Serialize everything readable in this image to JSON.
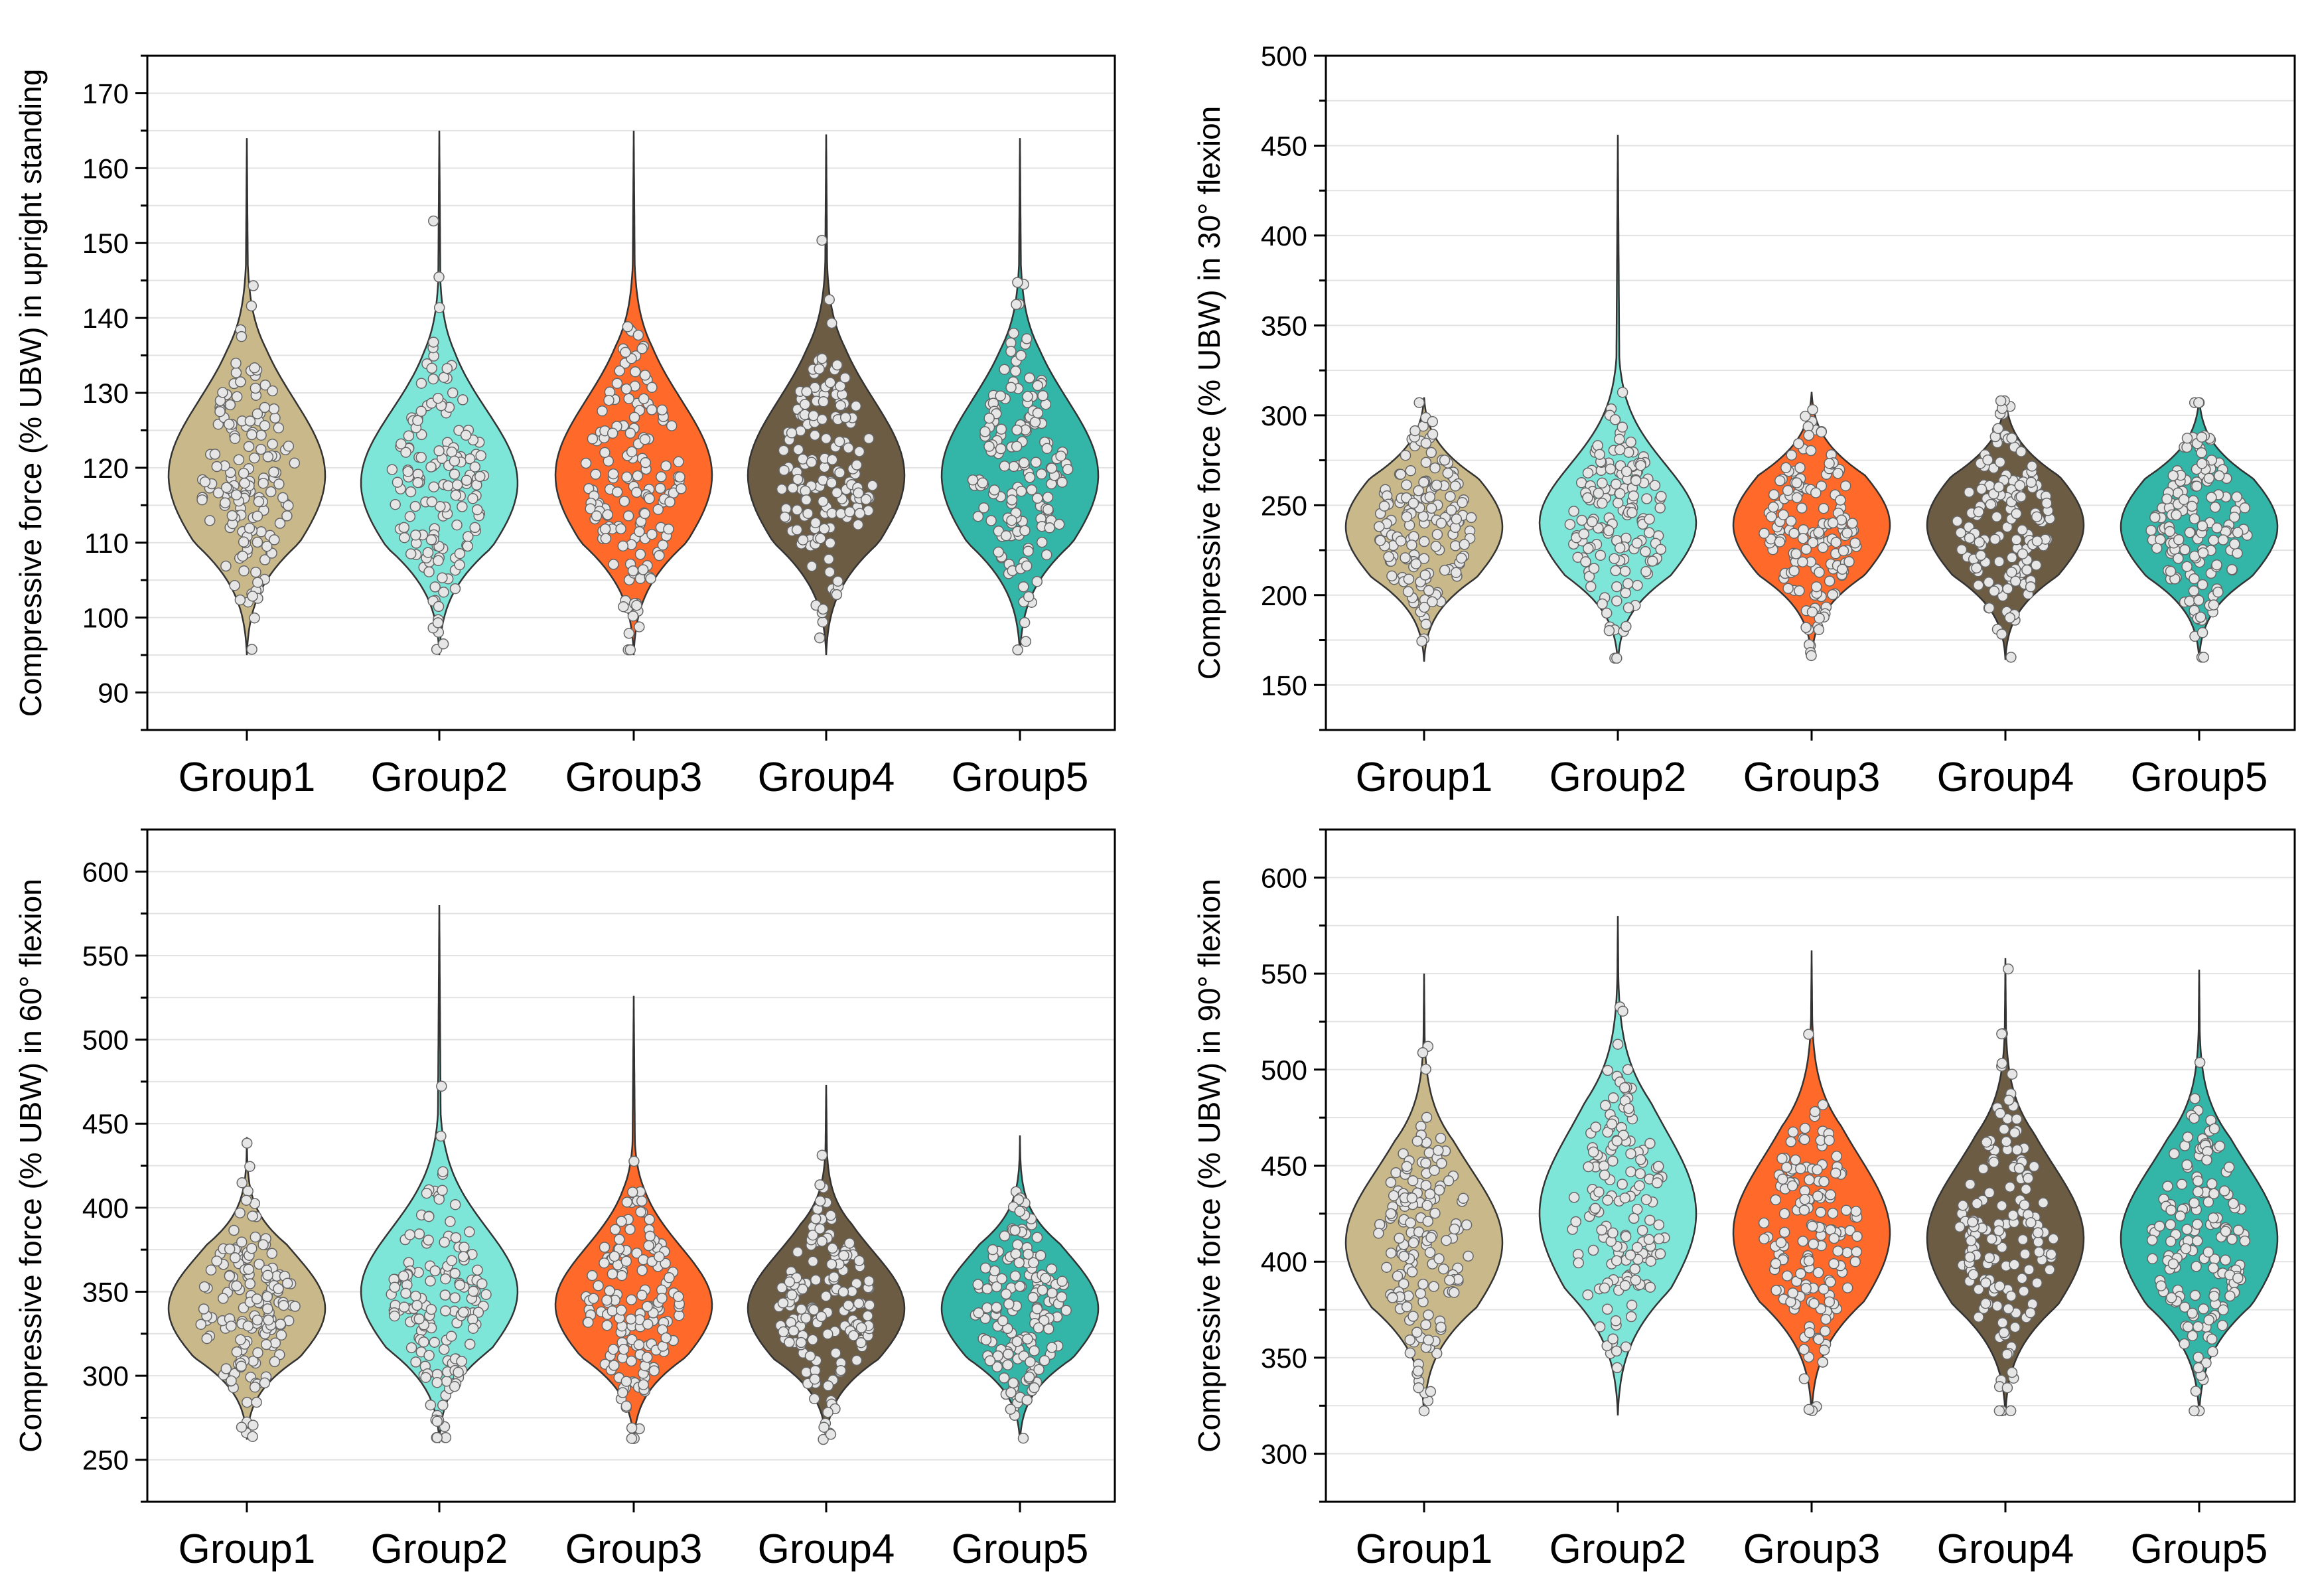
{
  "chart_data": [
    {
      "type": "violin",
      "ylabel": "Compressive force (% UBW) in upright standing",
      "ylim": [
        85,
        175
      ],
      "yticks": [
        90,
        100,
        110,
        120,
        130,
        140,
        150,
        160,
        170
      ],
      "grid": true,
      "categories": [
        "Group1",
        "Group2",
        "Group3",
        "Group4",
        "Group5"
      ],
      "colors": [
        "#c9b88a",
        "#7ee6d8",
        "#ff6a2a",
        "#6d5c44",
        "#33b5a8"
      ],
      "series": [
        {
          "name": "Group1",
          "min": 95,
          "max": 164,
          "median": 119
        },
        {
          "name": "Group2",
          "min": 95,
          "max": 165,
          "median": 118
        },
        {
          "name": "Group3",
          "min": 95,
          "max": 165,
          "median": 119
        },
        {
          "name": "Group4",
          "min": 95,
          "max": 164.5,
          "median": 119
        },
        {
          "name": "Group5",
          "min": 95,
          "max": 164,
          "median": 119
        }
      ]
    },
    {
      "type": "violin",
      "ylabel": "Compressive force (% UBW) in 30° flexion",
      "ylim": [
        125,
        500
      ],
      "yticks": [
        150,
        200,
        250,
        300,
        350,
        400,
        450,
        500
      ],
      "grid": true,
      "categories": [
        "Group1",
        "Group2",
        "Group3",
        "Group4",
        "Group5"
      ],
      "colors": [
        "#c9b88a",
        "#7ee6d8",
        "#ff6a2a",
        "#6d5c44",
        "#33b5a8"
      ],
      "series": [
        {
          "name": "Group1",
          "min": 163,
          "max": 310,
          "median": 238
        },
        {
          "name": "Group2",
          "min": 162,
          "max": 456,
          "median": 240
        },
        {
          "name": "Group3",
          "min": 164,
          "max": 313,
          "median": 239
        },
        {
          "name": "Group4",
          "min": 164,
          "max": 311,
          "median": 239
        },
        {
          "name": "Group5",
          "min": 164,
          "max": 310,
          "median": 238
        }
      ]
    },
    {
      "type": "violin",
      "ylabel": "Compressive force (% UBW) in 60° flexion",
      "ylim": [
        225,
        625
      ],
      "yticks": [
        250,
        300,
        350,
        400,
        450,
        500,
        550,
        600
      ],
      "grid": true,
      "categories": [
        "Group1",
        "Group2",
        "Group3",
        "Group4",
        "Group5"
      ],
      "colors": [
        "#c9b88a",
        "#7ee6d8",
        "#ff6a2a",
        "#6d5c44",
        "#33b5a8"
      ],
      "series": [
        {
          "name": "Group1",
          "min": 262,
          "max": 442,
          "median": 340
        },
        {
          "name": "Group2",
          "min": 260,
          "max": 580,
          "median": 350
        },
        {
          "name": "Group3",
          "min": 260,
          "max": 526,
          "median": 342
        },
        {
          "name": "Group4",
          "min": 260,
          "max": 473,
          "median": 340
        },
        {
          "name": "Group5",
          "min": 261,
          "max": 443,
          "median": 340
        }
      ]
    },
    {
      "type": "violin",
      "ylabel": "Compressive force (% UBW) in 90° flexion",
      "ylim": [
        275,
        625
      ],
      "yticks": [
        300,
        350,
        400,
        450,
        500,
        550,
        600
      ],
      "grid": true,
      "categories": [
        "Group1",
        "Group2",
        "Group3",
        "Group4",
        "Group5"
      ],
      "colors": [
        "#c9b88a",
        "#7ee6d8",
        "#ff6a2a",
        "#6d5c44",
        "#33b5a8"
      ],
      "series": [
        {
          "name": "Group1",
          "min": 320,
          "max": 550,
          "median": 410
        },
        {
          "name": "Group2",
          "min": 320,
          "max": 580,
          "median": 425
        },
        {
          "name": "Group3",
          "min": 320,
          "max": 562,
          "median": 415
        },
        {
          "name": "Group4",
          "min": 320,
          "max": 558,
          "median": 412
        },
        {
          "name": "Group5",
          "min": 320,
          "max": 552,
          "median": 412
        }
      ]
    }
  ]
}
